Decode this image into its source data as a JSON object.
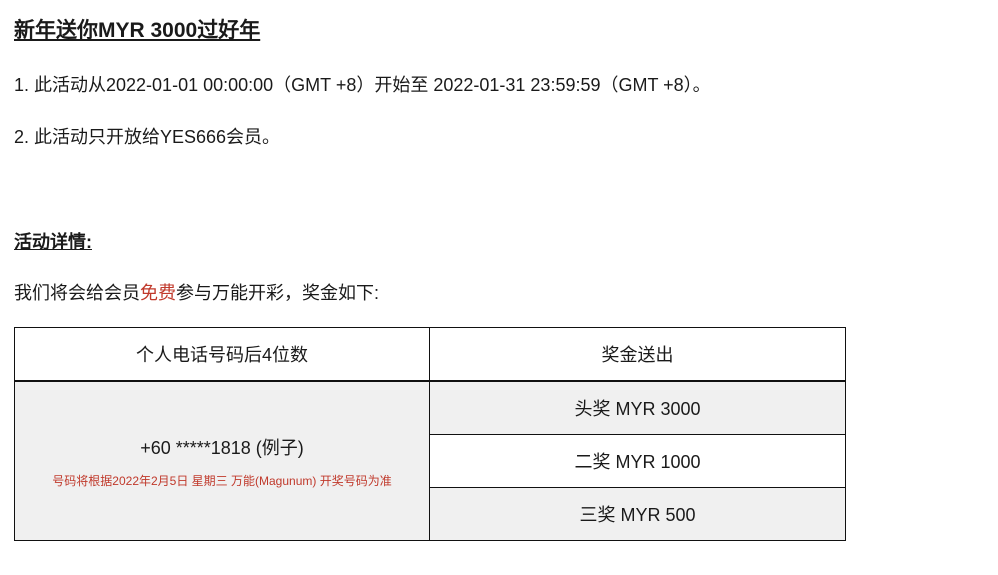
{
  "title": "新年送你MYR 3000过好年",
  "paragraphs": [
    "1. 此活动从2022-01-01 00:00:00（GMT +8）开始至 2022-01-31 23:59:59（GMT +8）。",
    "2. 此活动只开放给YES666会员。"
  ],
  "details_heading": "活动详情:",
  "intro": {
    "before": "我们将会给会员",
    "highlight": "免费",
    "after": "参与万能开彩，奖金如下:"
  },
  "table": {
    "headers": [
      "个人电话号码后4位数",
      "奖金送出"
    ],
    "phone_example": "+60 *****1818 (例子)",
    "note": "号码将根据2022年2月5日 星期三 万能(Magunum) 开奖号码为准",
    "prizes": [
      "头奖 MYR 3000",
      "二奖 MYR 1000",
      "三奖 MYR 500"
    ]
  },
  "colors": {
    "highlight": "#c0392b",
    "row_gray": "#f0f0f0"
  }
}
